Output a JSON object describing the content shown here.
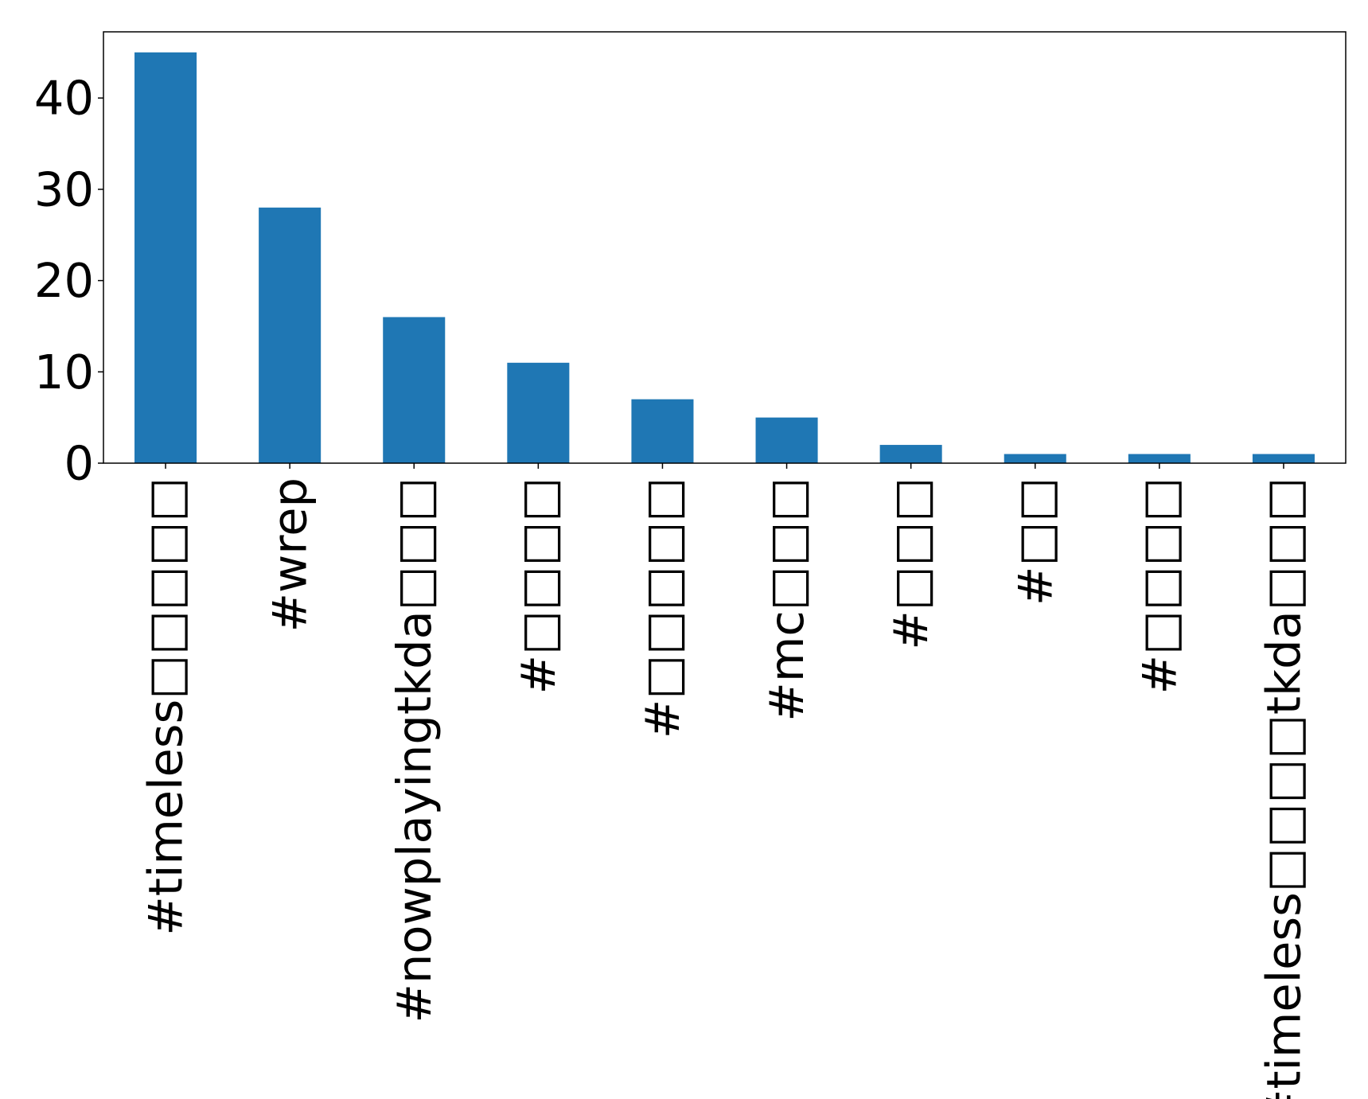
{
  "chart_data": {
    "type": "bar",
    "title": "",
    "xlabel": "",
    "ylabel": "",
    "categories": [
      "#timeless□□□□□",
      "#wrep",
      "#nowplayingtkda□□□",
      "#□□□□",
      "#□□□□□",
      "#mc□□□",
      "#□□□",
      "#□□",
      "#□□□□",
      "#timeless□□□□tkda□□□"
    ],
    "values": [
      45,
      28,
      16,
      11,
      7,
      5,
      2,
      1,
      1,
      1
    ],
    "ylim": [
      0,
      47.25
    ],
    "yticks": [
      0,
      10,
      20,
      30,
      40
    ],
    "bar_color": "#1f77b4",
    "grid": false,
    "legend": "none"
  }
}
